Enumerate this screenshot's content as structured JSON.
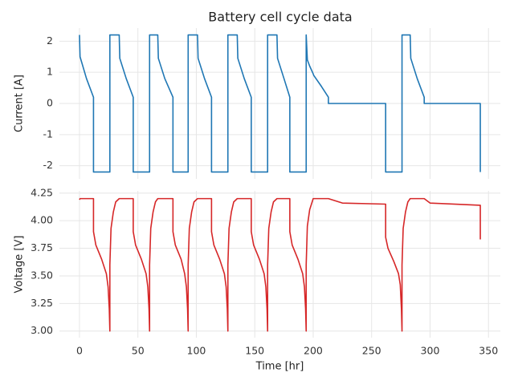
{
  "chart_data": [
    {
      "type": "line",
      "title": "Battery cell cycle data",
      "ylabel": "Current [A]",
      "x": [
        0,
        0.5,
        6,
        12,
        12,
        14,
        19,
        23,
        24.5,
        25.5,
        26,
        26,
        27,
        29,
        31,
        34,
        34.5,
        40,
        46,
        46,
        48,
        53,
        57,
        58.5,
        59.5,
        60,
        60,
        61,
        63,
        65,
        67,
        67.5,
        73,
        80,
        80,
        82,
        87,
        90,
        91.5,
        92.5,
        93,
        93,
        94,
        96,
        98,
        101,
        101.5,
        107,
        113,
        113,
        115,
        120,
        124,
        125.5,
        126.5,
        127,
        127,
        128,
        130,
        132,
        135,
        135.5,
        141,
        147,
        147,
        149,
        154,
        158,
        159.5,
        160.5,
        161,
        161,
        162,
        164,
        166,
        169,
        169.5,
        175,
        180,
        180,
        182,
        187,
        191,
        192.5,
        193.5,
        194,
        194,
        195,
        197,
        200,
        200.5,
        207,
        213,
        213,
        225,
        262,
        262,
        264,
        269,
        273,
        274.5,
        275.5,
        276,
        276,
        277,
        279,
        281,
        283,
        283.5,
        289,
        295,
        295,
        300,
        343,
        343
      ],
      "series": [
        {
          "color": "#1f77b4",
          "values": [
            2.2,
            1.5,
            0.8,
            0.2,
            -2.2,
            -2.2,
            -2.2,
            -2.2,
            -2.2,
            -2.2,
            -2.2,
            2.2,
            2.2,
            2.2,
            2.2,
            2.2,
            1.45,
            0.8,
            0.2,
            -2.2,
            -2.2,
            -2.2,
            -2.2,
            -2.2,
            -2.2,
            -2.2,
            2.2,
            2.2,
            2.2,
            2.2,
            2.2,
            1.45,
            0.8,
            0.2,
            -2.2,
            -2.2,
            -2.2,
            -2.2,
            -2.2,
            -2.2,
            -2.2,
            2.2,
            2.2,
            2.2,
            2.2,
            2.2,
            1.45,
            0.8,
            0.2,
            -2.2,
            -2.2,
            -2.2,
            -2.2,
            -2.2,
            -2.2,
            -2.2,
            2.2,
            2.2,
            2.2,
            2.2,
            2.2,
            1.45,
            0.8,
            0.2,
            -2.2,
            -2.2,
            -2.2,
            -2.2,
            -2.2,
            -2.2,
            -2.2,
            2.2,
            2.2,
            2.2,
            2.2,
            2.2,
            1.45,
            0.8,
            0.2,
            -2.2,
            -2.2,
            -2.2,
            -2.2,
            -2.2,
            -2.2,
            -2.2,
            2.2,
            1.4,
            1.2,
            0.95,
            0.9,
            0.55,
            0.2,
            0,
            0,
            0,
            -2.2,
            -2.2,
            -2.2,
            -2.2,
            -2.2,
            -2.2,
            -2.2,
            2.2,
            2.2,
            2.2,
            2.2,
            2.2,
            1.45,
            0.8,
            0.2,
            0,
            0,
            0,
            -2.2
          ]
        }
      ],
      "xlim": [
        -17.15,
        360.15
      ],
      "xticks": [
        0,
        50,
        100,
        150,
        200,
        250,
        300,
        350
      ],
      "ylim": [
        -2.42,
        2.42
      ],
      "yticks": [
        -2,
        -1,
        0,
        1,
        2
      ],
      "grid": true
    },
    {
      "type": "line",
      "xlabel": "Time [hr]",
      "ylabel": "Voltage [V]",
      "x": [
        0,
        0.5,
        6,
        12,
        12,
        14,
        19,
        23,
        24.5,
        25.5,
        26,
        26,
        27,
        29,
        31,
        34,
        34.5,
        40,
        46,
        46,
        48,
        53,
        57,
        58.5,
        59.5,
        60,
        60,
        61,
        63,
        65,
        67,
        67.5,
        73,
        80,
        80,
        82,
        87,
        90,
        91.5,
        92.5,
        93,
        93,
        94,
        96,
        98,
        101,
        101.5,
        107,
        113,
        113,
        115,
        120,
        124,
        125.5,
        126.5,
        127,
        127,
        128,
        130,
        132,
        135,
        135.5,
        141,
        147,
        147,
        149,
        154,
        158,
        159.5,
        160.5,
        161,
        161,
        162,
        164,
        166,
        169,
        169.5,
        175,
        180,
        180,
        182,
        187,
        191,
        192.5,
        193.5,
        194,
        194,
        195,
        197,
        200,
        200.5,
        207,
        213,
        213,
        225,
        262,
        262,
        264,
        269,
        273,
        274.5,
        275.5,
        276,
        276,
        277,
        279,
        281,
        283,
        283.5,
        289,
        295,
        295,
        300,
        343,
        343
      ],
      "series": [
        {
          "color": "#d62728",
          "values": [
            4.19,
            4.2,
            4.2,
            4.2,
            3.9,
            3.78,
            3.65,
            3.52,
            3.4,
            3.2,
            3.0,
            3.6,
            3.93,
            4.08,
            4.17,
            4.2,
            4.2,
            4.2,
            4.2,
            3.9,
            3.78,
            3.65,
            3.52,
            3.4,
            3.2,
            3.0,
            3.6,
            3.93,
            4.08,
            4.17,
            4.2,
            4.2,
            4.2,
            4.2,
            3.9,
            3.78,
            3.65,
            3.52,
            3.4,
            3.2,
            3.0,
            3.6,
            3.93,
            4.08,
            4.17,
            4.2,
            4.2,
            4.2,
            4.2,
            3.9,
            3.78,
            3.65,
            3.52,
            3.4,
            3.2,
            3.0,
            3.6,
            3.93,
            4.08,
            4.17,
            4.2,
            4.2,
            4.2,
            4.2,
            3.9,
            3.78,
            3.65,
            3.52,
            3.4,
            3.2,
            3.0,
            3.6,
            3.93,
            4.08,
            4.17,
            4.2,
            4.2,
            4.2,
            4.2,
            3.9,
            3.78,
            3.65,
            3.52,
            3.4,
            3.2,
            3.0,
            3.6,
            3.95,
            4.1,
            4.2,
            4.2,
            4.2,
            4.2,
            4.2,
            4.16,
            4.15,
            3.85,
            3.75,
            3.63,
            3.52,
            3.42,
            3.2,
            3.0,
            3.6,
            3.93,
            4.08,
            4.17,
            4.2,
            4.2,
            4.2,
            4.2,
            4.2,
            4.16,
            4.14,
            3.83
          ]
        }
      ],
      "xlim": [
        -17.15,
        360.15
      ],
      "xticks": [
        0,
        50,
        100,
        150,
        200,
        250,
        300,
        350
      ],
      "ylim": [
        2.94,
        4.27
      ],
      "yticks": [
        {
          "value": 3,
          "label": "3.00"
        },
        3.25,
        {
          "value": 3.5,
          "label": "3.50"
        },
        3.75,
        {
          "value": 4,
          "label": "4.00"
        },
        4.25
      ],
      "grid": true
    }
  ]
}
